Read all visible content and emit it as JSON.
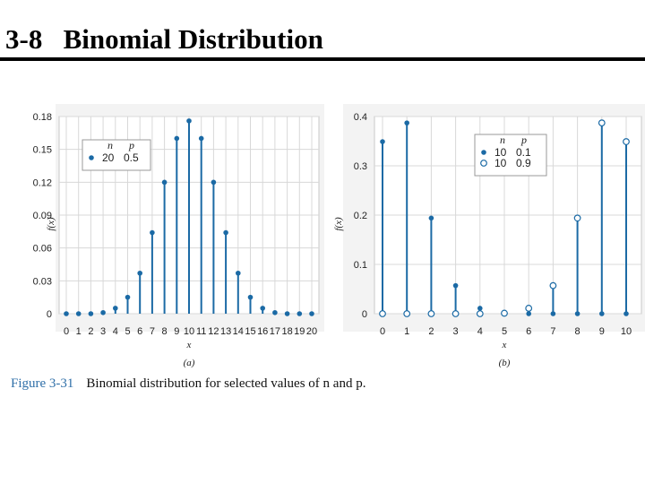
{
  "slide": {
    "title": "3-8   Binomial Distribution"
  },
  "caption": {
    "label": "Figure 3-31",
    "text": "Binomial distribution for selected values of n and p."
  },
  "colors": {
    "series": "#1b6aa5",
    "grid": "#d8d8d8",
    "rule": "#000000",
    "caption_label": "#2f6fa8"
  },
  "chart_data": [
    {
      "type": "scatter",
      "panel_label": "(a)",
      "xlabel": "x",
      "ylabel": "f(x)",
      "ylim": [
        0,
        0.18
      ],
      "yticks": [
        "0",
        "0.03",
        "0.06",
        "0.09",
        "0.12",
        "0.15",
        "0.18"
      ],
      "xticks": [
        "0",
        "1",
        "2",
        "3",
        "4",
        "5",
        "6",
        "7",
        "8",
        "9",
        "10",
        "11",
        "12",
        "13",
        "14",
        "15",
        "16",
        "17",
        "18",
        "19",
        "20"
      ],
      "grid": true,
      "legend": {
        "placement": "top-left",
        "header": [
          "n",
          "p"
        ]
      },
      "series": [
        {
          "n": "20",
          "p": "0.5",
          "marker": "filled",
          "x": [
            0,
            1,
            2,
            3,
            4,
            5,
            6,
            7,
            8,
            9,
            10,
            11,
            12,
            13,
            14,
            15,
            16,
            17,
            18,
            19,
            20
          ],
          "values": [
            0,
            0,
            0,
            0.001,
            0.005,
            0.015,
            0.037,
            0.074,
            0.12,
            0.16,
            0.176,
            0.16,
            0.12,
            0.074,
            0.037,
            0.015,
            0.005,
            0.001,
            0,
            0,
            0
          ]
        }
      ]
    },
    {
      "type": "scatter",
      "panel_label": "(b)",
      "xlabel": "x",
      "ylabel": "f(x)",
      "ylim": [
        0,
        0.4
      ],
      "yticks": [
        "0",
        "0.1",
        "0.2",
        "0.3",
        "0.4"
      ],
      "xticks": [
        "0",
        "1",
        "2",
        "3",
        "4",
        "5",
        "6",
        "7",
        "8",
        "9",
        "10"
      ],
      "grid": true,
      "legend": {
        "placement": "top-right",
        "header": [
          "n",
          "p"
        ]
      },
      "series": [
        {
          "n": "10",
          "p": "0.1",
          "marker": "filled",
          "x": [
            0,
            1,
            2,
            3,
            4,
            5,
            6,
            7,
            8,
            9,
            10
          ],
          "values": [
            0.349,
            0.387,
            0.194,
            0.057,
            0.011,
            0.001,
            0,
            0,
            0,
            0,
            0
          ]
        },
        {
          "n": "10",
          "p": "0.9",
          "marker": "open",
          "x": [
            0,
            1,
            2,
            3,
            4,
            5,
            6,
            7,
            8,
            9,
            10
          ],
          "values": [
            0,
            0,
            0,
            0,
            0,
            0.001,
            0.011,
            0.057,
            0.194,
            0.387,
            0.349
          ]
        }
      ]
    }
  ]
}
